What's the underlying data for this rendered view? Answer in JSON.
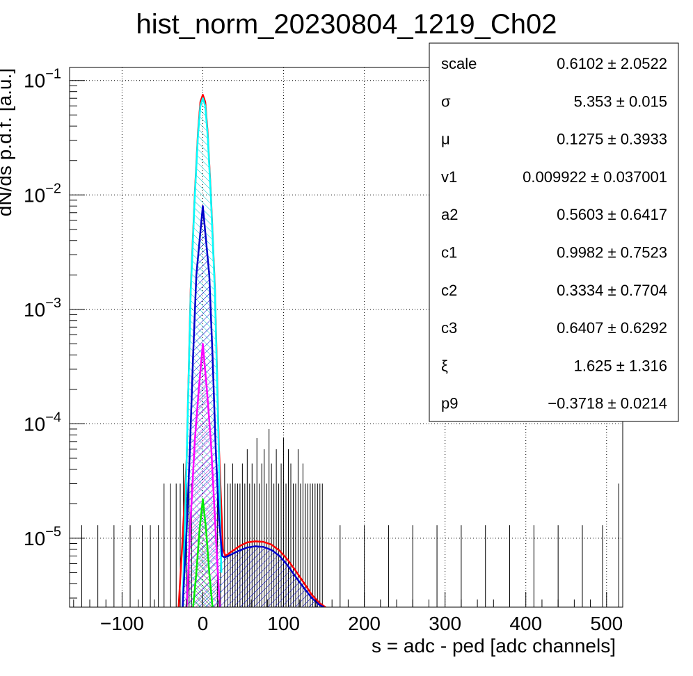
{
  "chart_data": {
    "type": "line",
    "title": "hist_norm_20230804_1219_Ch02",
    "xlabel": "s = adc - ped [adc channels]",
    "ylabel": "dN/ds p.d.f. [a.u.]",
    "xlim": [
      -165,
      520
    ],
    "ylim": [
      2.5e-06,
      0.13
    ],
    "yscale": "log",
    "grid": true,
    "x_tick_labels": [
      "−100",
      "0",
      "100",
      "200",
      "300",
      "400",
      "500"
    ],
    "x_ticks": [
      -100,
      0,
      100,
      200,
      300,
      400,
      500
    ],
    "y_ticks": [
      {
        "base": "10",
        "exp": "−1",
        "value": 0.1
      },
      {
        "base": "10",
        "exp": "−2",
        "value": 0.01
      },
      {
        "base": "10",
        "exp": "−3",
        "value": 0.001
      },
      {
        "base": "10",
        "exp": "−4",
        "value": 0.0001
      },
      {
        "base": "10",
        "exp": "−5",
        "value": 1e-05
      }
    ],
    "colors": {
      "total": "#ff0000",
      "ped_gauss": "#00ffff",
      "pe1": "#0000cc",
      "pe2": "#ff00ff",
      "pe3": "#00ee00",
      "histogram": "#000000"
    },
    "curves": [
      {
        "color_key": "total",
        "x": [
          -30,
          -25,
          -20,
          -15,
          -10,
          -6,
          -3,
          0,
          3,
          6,
          10,
          15,
          20,
          25,
          28,
          35,
          45,
          55,
          65,
          75,
          85,
          95,
          105,
          115,
          125,
          135,
          145,
          152
        ],
        "y": [
          2.5e-06,
          1e-05,
          5e-05,
          0.0015,
          0.01,
          0.035,
          0.065,
          0.075,
          0.065,
          0.035,
          0.01,
          0.0015,
          6e-05,
          8e-06,
          7e-06,
          7.6e-06,
          8.5e-06,
          9.2e-06,
          9.4e-06,
          9.3e-06,
          8.8e-06,
          7.8e-06,
          6.5e-06,
          5.2e-06,
          4.1e-06,
          3.2e-06,
          2.7e-06,
          2.5e-06
        ]
      },
      {
        "color_key": "ped_gauss",
        "x": [
          -25,
          -20,
          -15,
          -10,
          -6,
          -3,
          0,
          3,
          6,
          10,
          15,
          20,
          23
        ],
        "y": [
          2.5e-06,
          5e-05,
          0.0014,
          0.0095,
          0.033,
          0.06,
          0.07,
          0.06,
          0.033,
          0.0095,
          0.0014,
          5e-05,
          5e-06
        ]
      },
      {
        "color_key": "pe1",
        "x": [
          -25,
          -20,
          -16,
          -12,
          -8,
          -4,
          0,
          4,
          8,
          12,
          16,
          20,
          24,
          27,
          35,
          45,
          55,
          65,
          75,
          85,
          95,
          105,
          115,
          125,
          135,
          145,
          150
        ],
        "y": [
          2.5e-06,
          1.2e-05,
          6e-05,
          0.0004,
          0.002,
          0.004,
          0.008,
          0.004,
          0.002,
          0.0004,
          6e-05,
          1.5e-05,
          7e-06,
          6.8e-06,
          7.2e-06,
          7.8e-06,
          8.3e-06,
          8.5e-06,
          8.4e-06,
          7.9e-06,
          7e-06,
          5.8e-06,
          4.6e-06,
          3.7e-06,
          3e-06,
          2.6e-06,
          2.5e-06
        ]
      },
      {
        "color_key": "pe2",
        "x": [
          -20,
          -15,
          -10,
          -5,
          0,
          5,
          10,
          15,
          18,
          21
        ],
        "y": [
          2.5e-06,
          1.5e-05,
          7e-05,
          0.0002,
          0.0005,
          0.0002,
          7e-05,
          1.5e-05,
          6e-06,
          2.5e-06
        ]
      },
      {
        "color_key": "pe3",
        "x": [
          -12,
          -8,
          -4,
          0,
          4,
          8,
          12
        ],
        "y": [
          2.5e-06,
          5e-06,
          1.2e-05,
          2.2e-05,
          1.2e-05,
          5e-06,
          2.5e-06
        ]
      }
    ],
    "histogram_spikes": {
      "color_key": "histogram",
      "x": [
        -150,
        -130,
        -110,
        -90,
        -75,
        -65,
        -55,
        -48,
        -40,
        -33,
        -28,
        -24,
        -20,
        -17,
        -14,
        18,
        22,
        27,
        31,
        34,
        37,
        40,
        43,
        46,
        49,
        52,
        55,
        58,
        61,
        64,
        67,
        70,
        73,
        76,
        79,
        82,
        85,
        88,
        91,
        94,
        97,
        100,
        103,
        106,
        109,
        112,
        115,
        118,
        121,
        124,
        127,
        130,
        133,
        136,
        139,
        142,
        145,
        148,
        170,
        200,
        230,
        260,
        290,
        320,
        350,
        380,
        410,
        440,
        470,
        495,
        515
      ],
      "y_top": [
        1.3e-05,
        1.3e-05,
        1.3e-05,
        1.3e-05,
        1.3e-05,
        1.3e-05,
        1.3e-05,
        3e-05,
        3e-05,
        3e-05,
        3e-05,
        4.5e-05,
        3e-05,
        4.5e-05,
        3e-05,
        3e-05,
        3e-05,
        4.5e-05,
        3e-05,
        3e-05,
        4.5e-05,
        3e-05,
        3e-05,
        3e-05,
        4.5e-05,
        3e-05,
        6e-05,
        3e-05,
        4.5e-05,
        3e-05,
        7.5e-05,
        3e-05,
        4.5e-05,
        6e-05,
        3e-05,
        9e-05,
        4.5e-05,
        3e-05,
        6e-05,
        3e-05,
        4.5e-05,
        7.5e-05,
        3e-05,
        6e-05,
        4.5e-05,
        3e-05,
        3e-05,
        6e-05,
        3e-05,
        4.5e-05,
        3e-05,
        3e-05,
        3e-05,
        3e-05,
        3e-05,
        3e-05,
        3e-05,
        3e-05,
        1.3e-05,
        1.3e-05,
        1.3e-05,
        1.3e-05,
        1.3e-05,
        1.3e-05,
        1.3e-05,
        1.3e-05,
        1.3e-05,
        1.3e-05,
        1.3e-05,
        1.3e-05,
        3e-05
      ]
    },
    "stats_box": [
      {
        "name": "scale",
        "value": "0.6102 ± 2.0522"
      },
      {
        "name": "σ",
        "value": "5.353 ± 0.015"
      },
      {
        "name": "μ",
        "value": "0.1275 ± 0.3933"
      },
      {
        "name": "v1",
        "value": "0.009922 ± 0.037001"
      },
      {
        "name": "a2",
        "value": "0.5603 ± 0.6417"
      },
      {
        "name": "c1",
        "value": "0.9982 ± 0.7523"
      },
      {
        "name": "c2",
        "value": "0.3334 ± 0.7704"
      },
      {
        "name": "c3",
        "value": "0.6407 ± 0.6292"
      },
      {
        "name": "ξ",
        "value": "1.625 ± 1.316"
      },
      {
        "name": "p9",
        "value": "−0.3718 ± 0.0214"
      }
    ]
  }
}
